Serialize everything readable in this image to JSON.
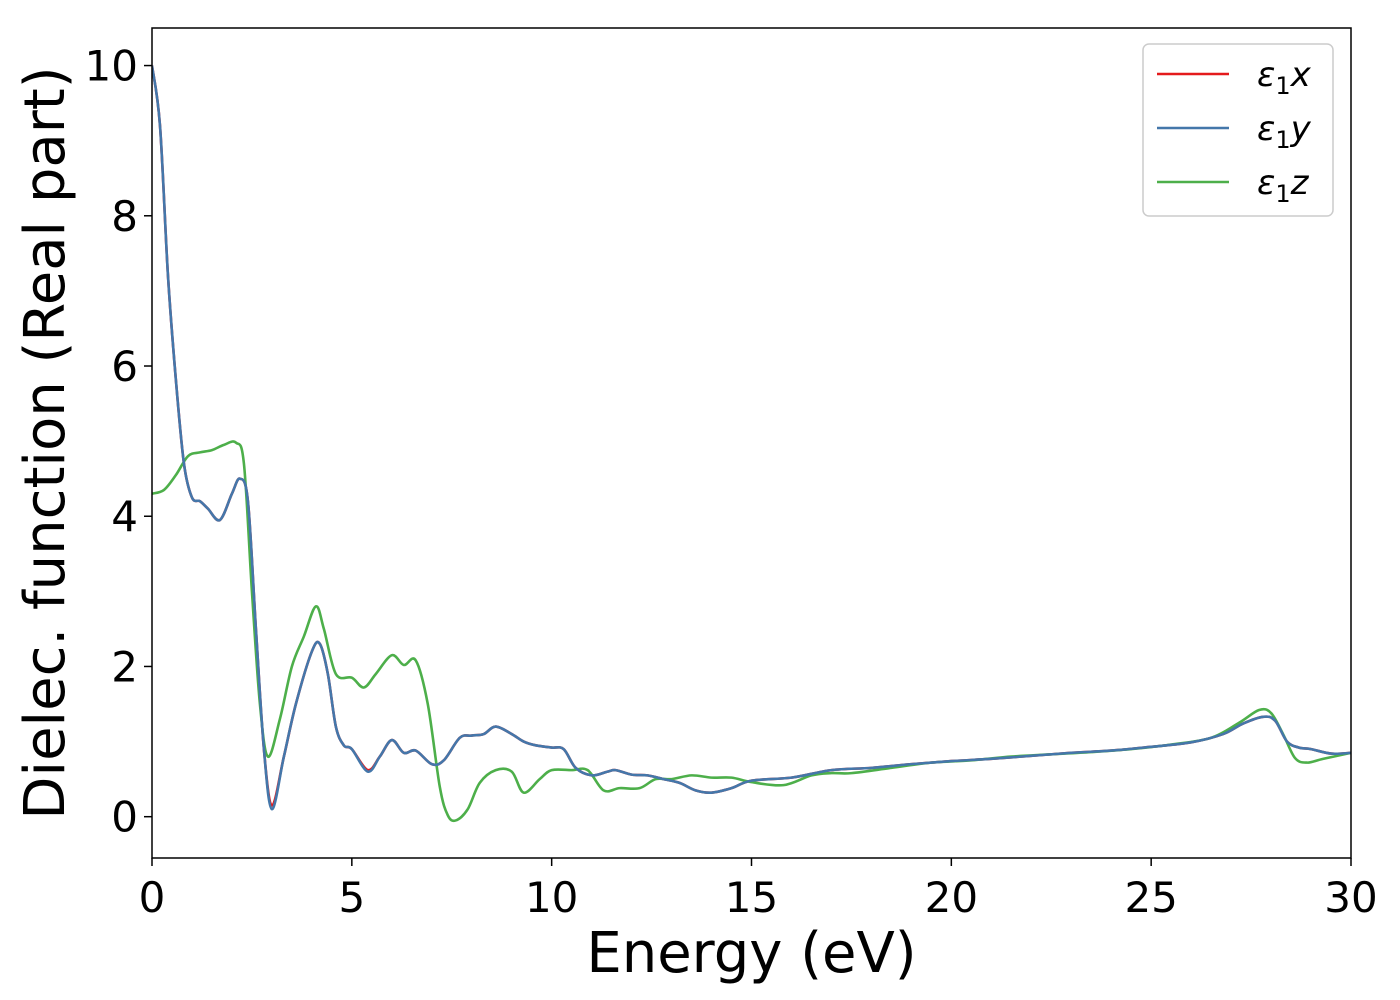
{
  "chart_data": {
    "type": "line",
    "title": "",
    "xlabel": "Energy (eV)",
    "ylabel": "Dielec. function (Real part)",
    "xlim": [
      0,
      30
    ],
    "ylim": [
      -0.55,
      10.5
    ],
    "xticks": [
      "0",
      "5",
      "10",
      "15",
      "20",
      "25",
      "30"
    ],
    "yticks": [
      "0",
      "2",
      "4",
      "6",
      "8",
      "10"
    ],
    "grid": false,
    "legend_position": "top-right",
    "series": [
      {
        "name": "ε1x",
        "legend_main": "ε",
        "legend_sub": "1",
        "legend_var": "x",
        "color": "#e41a1c",
        "x": [
          0,
          0.2,
          0.4,
          0.6,
          0.8,
          1.0,
          1.2,
          1.4,
          1.7,
          2.0,
          2.2,
          2.4,
          2.6,
          2.8,
          3.0,
          3.3,
          3.6,
          4.0,
          4.2,
          4.4,
          4.6,
          4.8,
          5.0,
          5.4,
          5.7,
          6.0,
          6.3,
          6.6,
          7.0,
          7.3,
          7.7,
          8.0,
          8.3,
          8.6,
          9.0,
          9.3,
          9.6,
          10.0,
          10.3,
          10.6,
          11.0,
          11.4,
          11.6,
          12.0,
          12.4,
          12.8,
          13.2,
          13.6,
          14.0,
          14.5,
          15.0,
          16.0,
          17.0,
          18.0,
          19.0,
          20.0,
          21.0,
          22.0,
          23.0,
          24.0,
          25.0,
          26.0,
          26.8,
          27.3,
          27.8,
          28.1,
          28.4,
          28.7,
          29.0,
          29.5,
          30.0
        ],
        "y": [
          10.0,
          9.2,
          7.2,
          5.8,
          4.7,
          4.25,
          4.2,
          4.1,
          3.95,
          4.3,
          4.5,
          4.2,
          2.5,
          0.9,
          0.15,
          0.8,
          1.5,
          2.2,
          2.3,
          1.9,
          1.2,
          0.95,
          0.9,
          0.62,
          0.8,
          1.02,
          0.85,
          0.88,
          0.7,
          0.75,
          1.05,
          1.08,
          1.1,
          1.2,
          1.1,
          1.0,
          0.95,
          0.92,
          0.9,
          0.65,
          0.55,
          0.6,
          0.62,
          0.56,
          0.55,
          0.5,
          0.45,
          0.35,
          0.32,
          0.38,
          0.48,
          0.52,
          0.62,
          0.65,
          0.7,
          0.74,
          0.77,
          0.81,
          0.85,
          0.88,
          0.93,
          0.99,
          1.1,
          1.24,
          1.33,
          1.28,
          1.0,
          0.92,
          0.9,
          0.84,
          0.85
        ]
      },
      {
        "name": "ε1y",
        "legend_main": "ε",
        "legend_sub": "1",
        "legend_var": "y",
        "color": "#4477aa",
        "x": [
          0,
          0.2,
          0.4,
          0.6,
          0.8,
          1.0,
          1.2,
          1.4,
          1.7,
          2.0,
          2.2,
          2.4,
          2.6,
          2.8,
          3.0,
          3.3,
          3.6,
          4.0,
          4.2,
          4.4,
          4.6,
          4.8,
          5.0,
          5.4,
          5.7,
          6.0,
          6.3,
          6.6,
          7.0,
          7.3,
          7.7,
          8.0,
          8.3,
          8.6,
          9.0,
          9.3,
          9.6,
          10.0,
          10.3,
          10.6,
          11.0,
          11.4,
          11.6,
          12.0,
          12.4,
          12.8,
          13.2,
          13.6,
          14.0,
          14.5,
          15.0,
          16.0,
          17.0,
          18.0,
          19.0,
          20.0,
          21.0,
          22.0,
          23.0,
          24.0,
          25.0,
          26.0,
          26.8,
          27.3,
          27.8,
          28.1,
          28.4,
          28.7,
          29.0,
          29.5,
          30.0
        ],
        "y": [
          10.0,
          9.2,
          7.2,
          5.8,
          4.7,
          4.25,
          4.2,
          4.1,
          3.95,
          4.3,
          4.5,
          4.2,
          2.5,
          0.9,
          0.1,
          0.8,
          1.5,
          2.2,
          2.3,
          1.9,
          1.2,
          0.95,
          0.9,
          0.6,
          0.8,
          1.02,
          0.85,
          0.88,
          0.7,
          0.75,
          1.05,
          1.08,
          1.1,
          1.2,
          1.1,
          1.0,
          0.95,
          0.92,
          0.9,
          0.65,
          0.55,
          0.6,
          0.62,
          0.56,
          0.55,
          0.5,
          0.45,
          0.35,
          0.32,
          0.38,
          0.48,
          0.52,
          0.62,
          0.65,
          0.7,
          0.74,
          0.77,
          0.81,
          0.85,
          0.88,
          0.93,
          0.99,
          1.1,
          1.24,
          1.33,
          1.28,
          1.0,
          0.92,
          0.9,
          0.84,
          0.85
        ]
      },
      {
        "name": "ε1z",
        "legend_main": "ε",
        "legend_sub": "1",
        "legend_var": "z",
        "color": "#4daf4a",
        "x": [
          0,
          0.3,
          0.6,
          0.9,
          1.2,
          1.5,
          1.8,
          2.1,
          2.3,
          2.5,
          2.7,
          2.9,
          3.2,
          3.5,
          3.8,
          4.1,
          4.3,
          4.6,
          5.0,
          5.3,
          5.6,
          6.0,
          6.3,
          6.6,
          6.9,
          7.2,
          7.4,
          7.6,
          7.9,
          8.2,
          8.6,
          9.0,
          9.3,
          9.7,
          10.0,
          10.5,
          10.9,
          11.3,
          11.7,
          12.2,
          12.6,
          13.0,
          13.5,
          14.0,
          14.5,
          15.0,
          15.8,
          16.5,
          17.0,
          17.5,
          18.5,
          19.5,
          20.5,
          21.5,
          22.5,
          23.5,
          24.5,
          25.5,
          26.5,
          27.2,
          27.7,
          28.0,
          28.3,
          28.6,
          28.9,
          29.3,
          30.0
        ],
        "y": [
          4.3,
          4.35,
          4.55,
          4.8,
          4.85,
          4.88,
          4.95,
          4.98,
          4.7,
          3.0,
          1.5,
          0.8,
          1.3,
          2.0,
          2.4,
          2.8,
          2.5,
          1.9,
          1.85,
          1.72,
          1.9,
          2.15,
          2.02,
          2.08,
          1.5,
          0.4,
          0.02,
          -0.05,
          0.1,
          0.45,
          0.62,
          0.6,
          0.32,
          0.5,
          0.62,
          0.62,
          0.62,
          0.35,
          0.38,
          0.38,
          0.5,
          0.5,
          0.55,
          0.52,
          0.52,
          0.46,
          0.42,
          0.55,
          0.58,
          0.58,
          0.65,
          0.72,
          0.75,
          0.8,
          0.83,
          0.86,
          0.9,
          0.96,
          1.05,
          1.25,
          1.42,
          1.38,
          1.1,
          0.78,
          0.72,
          0.77,
          0.85
        ]
      }
    ]
  }
}
